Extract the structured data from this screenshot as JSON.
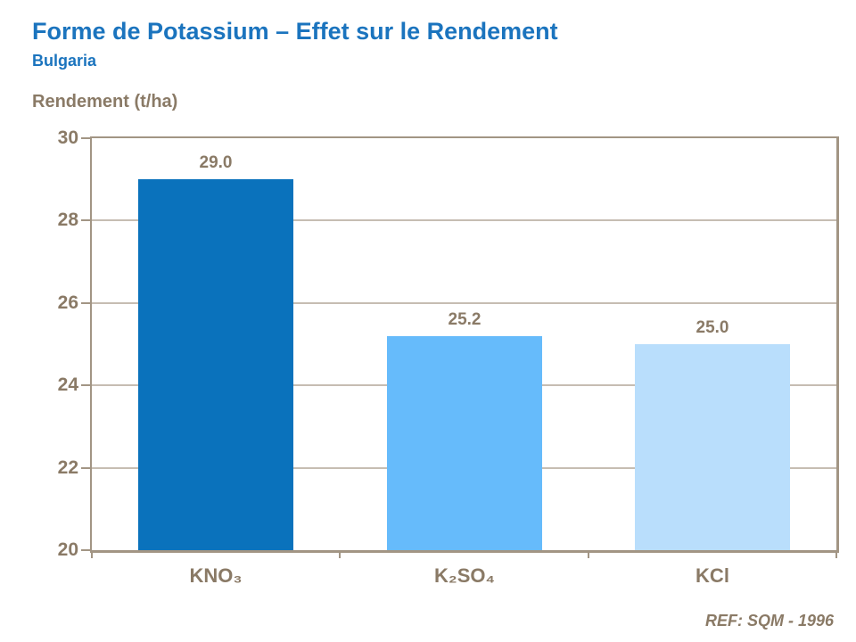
{
  "header": {
    "title": "Forme de Potassium – Effet sur le Rendement",
    "subtitle": "Bulgaria"
  },
  "chart_data": {
    "type": "bar",
    "ylabel": "Rendement (t/ha)",
    "categories": [
      "KNO₃",
      "K₂SO₄",
      "KCl"
    ],
    "values": [
      29.0,
      25.2,
      25.0
    ],
    "value_labels": [
      "29.0",
      "25.2",
      "25.0"
    ],
    "bar_colors": [
      "#0A72BC",
      "#66BBFB",
      "#B9DEFC"
    ],
    "ylim": [
      20,
      30
    ],
    "yticks": [
      20,
      22,
      24,
      26,
      28,
      30
    ],
    "grid": true,
    "legend": false
  },
  "footer": {
    "reference": "REF: SQM - 1996"
  },
  "colors": {
    "title_blue": "#1B74BE",
    "label_brown": "#8A7A66",
    "axis_line": "#A29584",
    "gridline": "#C6BDB2"
  }
}
